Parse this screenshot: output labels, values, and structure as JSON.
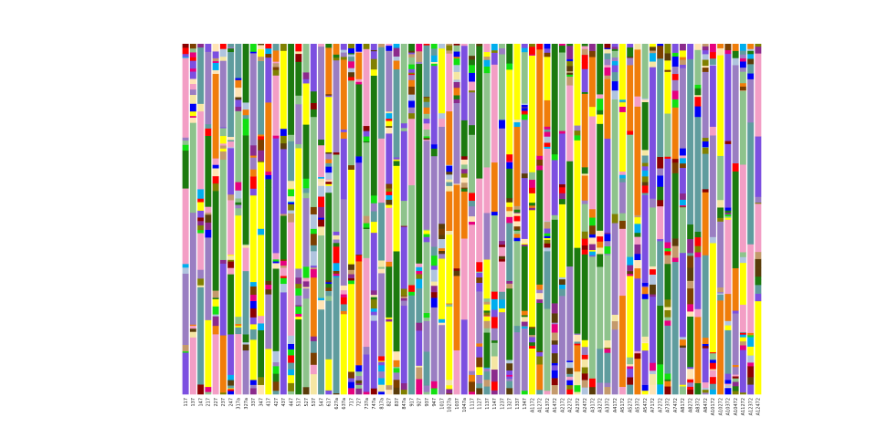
{
  "chart_data": {
    "type": "bar",
    "stacked": true,
    "normalized": true,
    "ylim": [
      0,
      1
    ],
    "grid": false,
    "legend": "none",
    "xlabel": "",
    "ylabel": "",
    "title": "",
    "categories": [
      "117",
      "137",
      "147",
      "217",
      "227",
      "237",
      "247",
      "317a",
      "327a",
      "337",
      "347",
      "417",
      "427",
      "437",
      "447",
      "517",
      "527",
      "537",
      "547",
      "617",
      "627a",
      "637a",
      "717",
      "727",
      "737a",
      "747a",
      "817a",
      "827",
      "837",
      "847a",
      "917",
      "927",
      "937",
      "947",
      "1017",
      "1027a",
      "1037",
      "1047a",
      "1117",
      "1127",
      "1137",
      "1147",
      "1237",
      "1327",
      "1337",
      "1347",
      "A1172",
      "A1272",
      "A1372",
      "A1472",
      "A2172",
      "A2272",
      "A2372",
      "A2472",
      "A3172",
      "A3272",
      "A3372",
      "A4172",
      "A5172",
      "A5272",
      "A5372",
      "A5472",
      "A7172",
      "A7272",
      "A7372",
      "A7472",
      "A8172",
      "A8272",
      "A8372",
      "A8472",
      "A10172",
      "A10272",
      "A10372",
      "A10472",
      "A11272",
      "A12372",
      "A12472"
    ],
    "palette": [
      "#f07d0a",
      "#7c4fe0",
      "#f39ec5",
      "#1c7a0f",
      "#8ec38c",
      "#5f9c9e",
      "#9a7ec2",
      "#ffff00",
      "#0000f5",
      "#00aeee",
      "#c49a6c",
      "#7b3f00",
      "#808000",
      "#e6007e",
      "#12e012",
      "#8b2a8c",
      "#8b0000",
      "#5a3c0a",
      "#f5e6a3",
      "#b0c4de",
      "#ff0000",
      "#ffe4b5"
    ],
    "series_values_note": ""
  }
}
